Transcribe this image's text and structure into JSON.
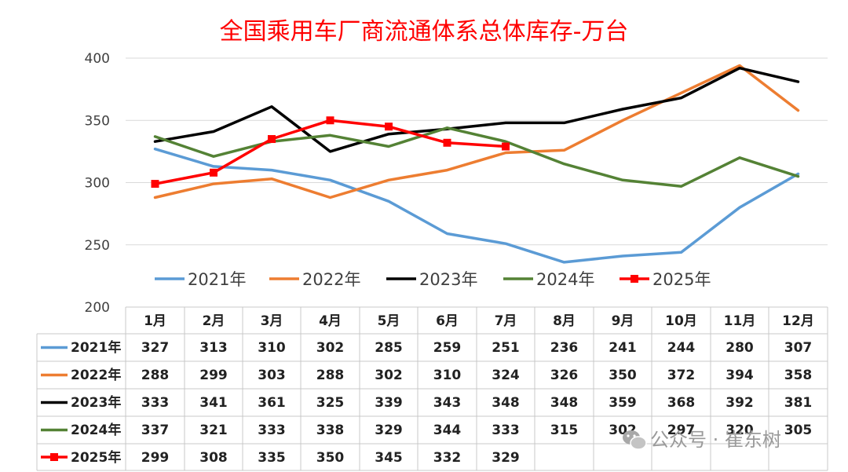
{
  "chart_data": {
    "type": "line",
    "title": "全国乘用车厂商流通体系总体库存-万台",
    "categories": [
      "1月",
      "2月",
      "3月",
      "4月",
      "5月",
      "6月",
      "7月",
      "8月",
      "9月",
      "10月",
      "11月",
      "12月"
    ],
    "ylim": [
      200,
      400
    ],
    "yticks": [
      200,
      250,
      300,
      350,
      400
    ],
    "grid": true,
    "legend_position": "bottom",
    "series": [
      {
        "name": "2021年",
        "color": "#5b9bd5",
        "marker": "none",
        "values": [
          327,
          313,
          310,
          302,
          285,
          259,
          251,
          236,
          241,
          244,
          280,
          307
        ]
      },
      {
        "name": "2022年",
        "color": "#ed7d31",
        "marker": "none",
        "values": [
          288,
          299,
          303,
          288,
          302,
          310,
          324,
          326,
          350,
          372,
          394,
          358
        ]
      },
      {
        "name": "2023年",
        "color": "#000000",
        "marker": "none",
        "values": [
          333,
          341,
          361,
          325,
          339,
          343,
          348,
          348,
          359,
          368,
          392,
          381
        ]
      },
      {
        "name": "2024年",
        "color": "#548235",
        "marker": "none",
        "values": [
          337,
          321,
          333,
          338,
          329,
          344,
          333,
          315,
          302,
          297,
          320,
          305
        ]
      },
      {
        "name": "2025年",
        "color": "#ff0000",
        "marker": "square",
        "values": [
          299,
          308,
          335,
          350,
          345,
          332,
          329,
          null,
          null,
          null,
          null,
          null
        ]
      }
    ]
  },
  "watermark": {
    "icon": "wechat-icon",
    "text": "公众号 · 崔东树"
  }
}
